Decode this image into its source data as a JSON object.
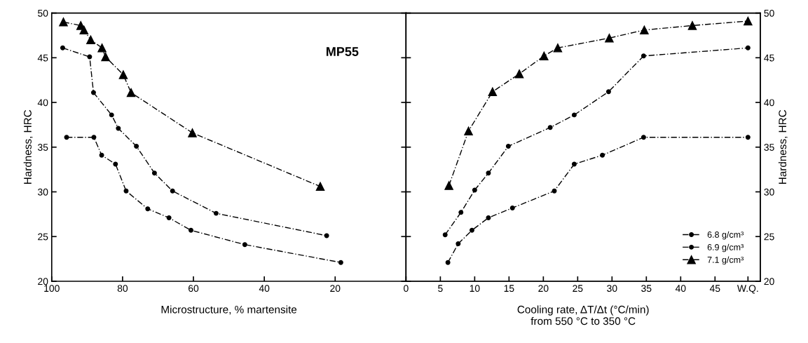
{
  "chart_data": [
    {
      "type": "line",
      "xlabel": "Microstructure, % martensite",
      "ylabel": "Hardness, HRC",
      "annotations": [
        "MP55"
      ],
      "xlim": [
        100,
        0
      ],
      "xticks": [
        100,
        80,
        60,
        40,
        20
      ],
      "ylim": [
        20,
        50
      ],
      "yticks": [
        20,
        25,
        30,
        35,
        40,
        45,
        50
      ],
      "grid": false,
      "legend": false,
      "line_style": "dashed",
      "series": [
        {
          "color": "#000000",
          "marker": "circle",
          "x": [
            95.8,
            88.1,
            85.9,
            82.0,
            79.0,
            72.9,
            66.9,
            60.7,
            45.5,
            18.4
          ],
          "values": [
            36.1,
            36.1,
            34.1,
            33.1,
            30.1,
            28.1,
            27.1,
            25.7,
            24.1,
            22.1
          ]
        },
        {
          "color": "#000000",
          "marker": "circle",
          "x": [
            96.9,
            89.3,
            88.2,
            83.1,
            81.2,
            76.1,
            71.0,
            65.9,
            53.6,
            22.4
          ],
          "values": [
            46.1,
            45.1,
            41.1,
            38.6,
            37.1,
            35.1,
            32.1,
            30.1,
            27.6,
            25.1
          ]
        },
        {
          "color": "#000000",
          "marker": "triangle",
          "x": [
            96.7,
            91.8,
            90.9,
            89.0,
            85.8,
            84.8,
            79.8,
            77.6,
            60.3,
            24.2
          ],
          "values": [
            49.0,
            48.6,
            48.1,
            47.0,
            46.1,
            45.1,
            43.1,
            41.1,
            36.6,
            30.6
          ]
        }
      ]
    },
    {
      "type": "line",
      "xlabel": "Cooling rate, ΔT/Δt (°C/min)\nfrom 550 °C to 350 °C",
      "y2label": "Hardness, HRC",
      "xlim": [
        0,
        51.6
      ],
      "xticks": [
        0,
        5,
        10,
        15,
        20,
        25,
        30,
        35,
        40,
        45,
        {
          "value": 49.8,
          "label": "W.Q."
        }
      ],
      "y2lim": [
        20,
        50
      ],
      "y2ticks": [
        20,
        25,
        30,
        35,
        40,
        45,
        50
      ],
      "grid": false,
      "legend": "bottom right",
      "line_style": "dashed",
      "series": [
        {
          "name": "6.8 g/cm³",
          "axis": "y2",
          "color": "#000000",
          "marker": "circle",
          "x": [
            6.1,
            7.6,
            9.6,
            12.0,
            15.5,
            21.6,
            24.5,
            28.6,
            34.6,
            49.8
          ],
          "values": [
            22.1,
            24.2,
            25.7,
            27.1,
            28.2,
            30.1,
            33.1,
            34.1,
            36.1,
            36.1
          ]
        },
        {
          "name": "6.9 g/cm³",
          "axis": "y2",
          "color": "#000000",
          "marker": "circle",
          "x": [
            5.7,
            8.0,
            10.0,
            12.0,
            14.9,
            21.0,
            24.5,
            29.5,
            34.6,
            49.8
          ],
          "values": [
            25.2,
            27.7,
            30.2,
            32.1,
            35.1,
            37.2,
            38.6,
            41.2,
            45.2,
            46.1
          ]
        },
        {
          "name": "7.1 g/cm³",
          "axis": "y2",
          "color": "#000000",
          "marker": "triangle",
          "x": [
            6.25,
            9.1,
            12.6,
            16.5,
            20.1,
            22.1,
            29.6,
            34.7,
            41.7,
            49.8
          ],
          "values": [
            30.7,
            36.8,
            41.2,
            43.2,
            45.2,
            46.1,
            47.2,
            48.1,
            48.6,
            49.1
          ]
        }
      ]
    }
  ]
}
